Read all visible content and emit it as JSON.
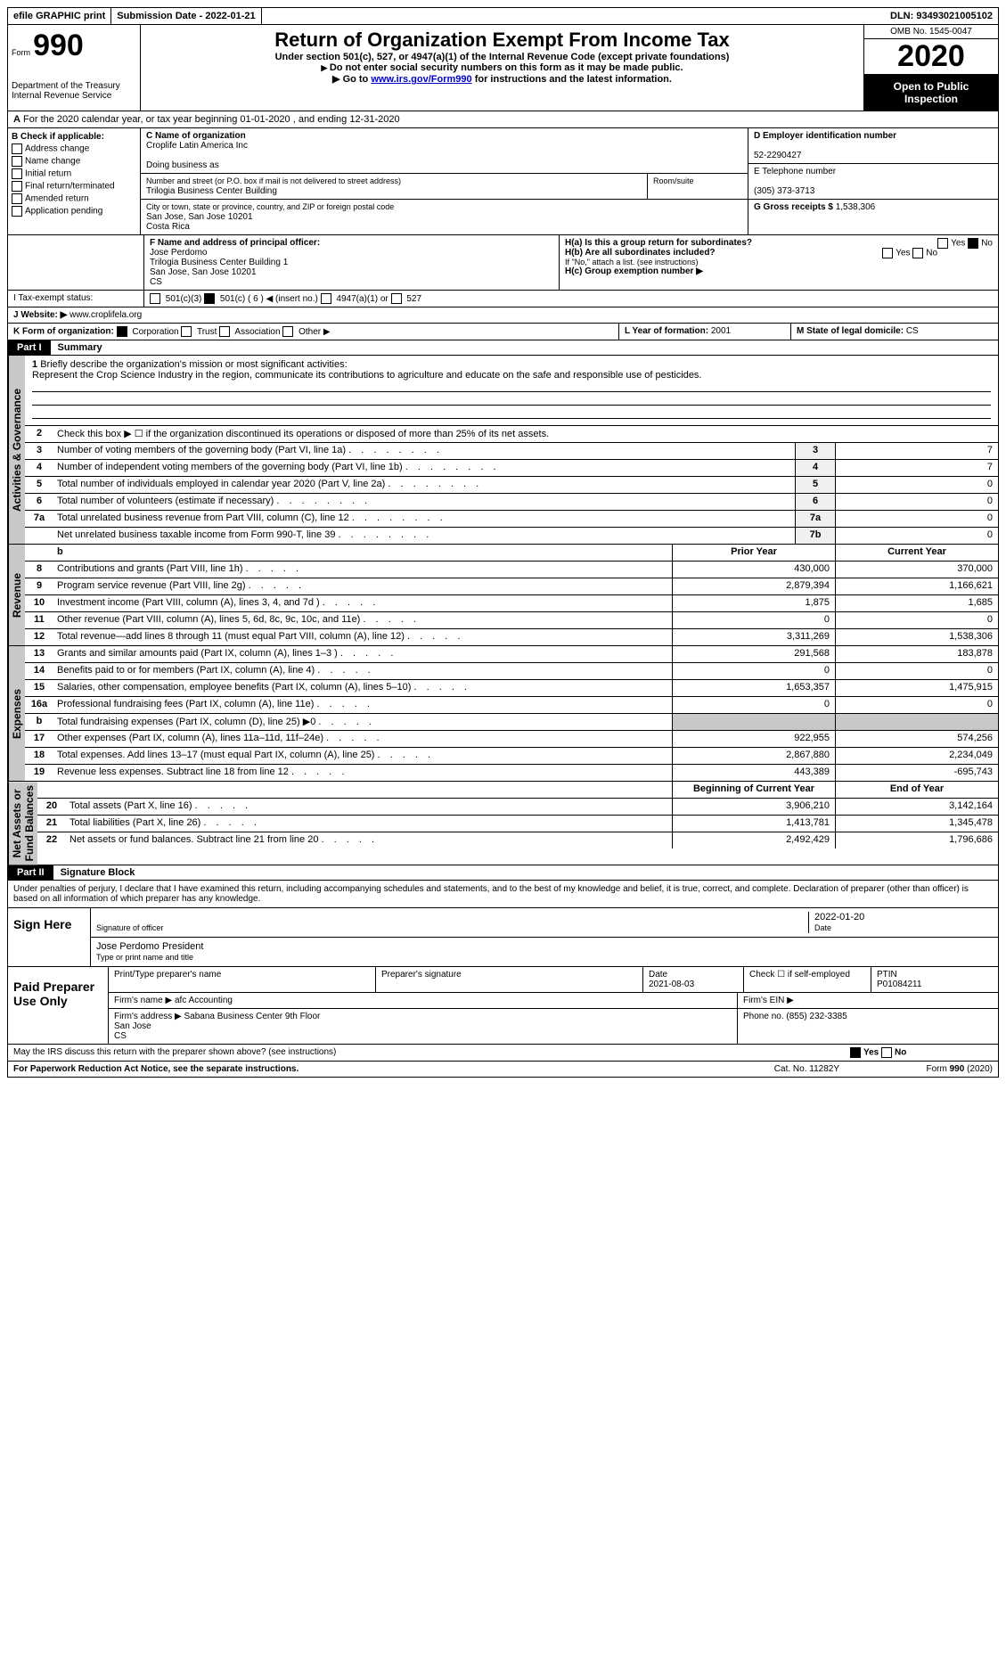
{
  "top": {
    "efile": "efile GRAPHIC print",
    "sub_label": "Submission Date - ",
    "sub_date": "2022-01-21",
    "dln_label": "DLN: ",
    "dln": "93493021005102"
  },
  "header": {
    "form": "Form",
    "form_no": "990",
    "dept": "Department of the Treasury\nInternal Revenue Service",
    "title": "Return of Organization Exempt From Income Tax",
    "sub1": "Under section 501(c), 527, or 4947(a)(1) of the Internal Revenue Code (except private foundations)",
    "sub2": "Do not enter social security numbers on this form as it may be made public.",
    "sub3_a": "Go to ",
    "sub3_link": "www.irs.gov/Form990",
    "sub3_b": " for instructions and the latest information.",
    "omb": "OMB No. 1545-0047",
    "year": "2020",
    "open": "Open to Public Inspection"
  },
  "row_a": "For the 2020 calendar year, or tax year beginning 01-01-2020   , and ending 12-31-2020",
  "b": {
    "hdr": "B Check if applicable:",
    "items": [
      "Address change",
      "Name change",
      "Initial return",
      "Final return/terminated",
      "Amended return",
      "Application pending"
    ]
  },
  "c": {
    "name_lbl": "C Name of organization",
    "name": "Croplife Latin America Inc",
    "dba_lbl": "Doing business as",
    "street_lbl": "Number and street (or P.O. box if mail is not delivered to street address)",
    "street": "Trilogia Business Center Building",
    "room_lbl": "Room/suite",
    "city_lbl": "City or town, state or province, country, and ZIP or foreign postal code",
    "city": "San Jose, San Jose  10201\nCosta Rica"
  },
  "d": {
    "ein_lbl": "D Employer identification number",
    "ein": "52-2290427",
    "tel_lbl": "E Telephone number",
    "tel": "(305) 373-3713",
    "gross_lbl": "G Gross receipts $",
    "gross": "1,538,306"
  },
  "f": {
    "lbl": "F  Name and address of principal officer:",
    "name": "Jose Perdomo",
    "addr1": "Trilogia Business Center Building 1",
    "addr2": "San Jose, San Jose  10201",
    "addr3": "CS"
  },
  "h": {
    "a": "H(a)  Is this a group return for subordinates?",
    "b": "H(b)  Are all subordinates included?",
    "b_note": "If \"No,\" attach a list. (see instructions)",
    "c": "H(c)  Group exemption number ▶",
    "yes": "Yes",
    "no": "No"
  },
  "i": {
    "lbl": "I   Tax-exempt status:",
    "opts": [
      "501(c)(3)",
      "501(c) ( 6 ) ◀ (insert no.)",
      "4947(a)(1) or",
      "527"
    ]
  },
  "j": {
    "lbl": "J   Website: ▶",
    "val": "www.croplifela.org"
  },
  "k": {
    "lbl": "K Form of organization:",
    "opts": [
      "Corporation",
      "Trust",
      "Association",
      "Other ▶"
    ]
  },
  "l": {
    "lbl": "L Year of formation:",
    "val": "2001"
  },
  "m": {
    "lbl": "M State of legal domicile:",
    "val": "CS"
  },
  "part1": {
    "tag": "Part I",
    "title": "Summary"
  },
  "sec_labels": {
    "ag": "Activities & Governance",
    "rev": "Revenue",
    "exp": "Expenses",
    "na": "Net Assets or\nFund Balances"
  },
  "mission": {
    "num": "1",
    "lbl": "Briefly describe the organization's mission or most significant activities:",
    "txt": "Represent the Crop Science Industry in the region, communicate its contributions to agriculture and educate on the safe and responsible use of pesticides."
  },
  "l2": {
    "num": "2",
    "lbl": "Check this box ▶ ☐ if the organization discontinued its operations or disposed of more than 25% of its net assets."
  },
  "gov_rows": [
    {
      "n": "3",
      "lbl": "Number of voting members of the governing body (Part VI, line 1a)",
      "box": "3",
      "v": "7"
    },
    {
      "n": "4",
      "lbl": "Number of independent voting members of the governing body (Part VI, line 1b)",
      "box": "4",
      "v": "7"
    },
    {
      "n": "5",
      "lbl": "Total number of individuals employed in calendar year 2020 (Part V, line 2a)",
      "box": "5",
      "v": "0"
    },
    {
      "n": "6",
      "lbl": "Total number of volunteers (estimate if necessary)",
      "box": "6",
      "v": "0"
    },
    {
      "n": "7a",
      "lbl": "Total unrelated business revenue from Part VIII, column (C), line 12",
      "box": "7a",
      "v": "0"
    },
    {
      "n": "",
      "lbl": "Net unrelated business taxable income from Form 990-T, line 39",
      "box": "7b",
      "v": "0"
    }
  ],
  "cols": {
    "prior": "Prior Year",
    "curr": "Current Year",
    "beg": "Beginning of Current Year",
    "end": "End of Year"
  },
  "rev_rows": [
    {
      "n": "8",
      "lbl": "Contributions and grants (Part VIII, line 1h)",
      "p": "430,000",
      "c": "370,000"
    },
    {
      "n": "9",
      "lbl": "Program service revenue (Part VIII, line 2g)",
      "p": "2,879,394",
      "c": "1,166,621"
    },
    {
      "n": "10",
      "lbl": "Investment income (Part VIII, column (A), lines 3, 4, and 7d )",
      "p": "1,875",
      "c": "1,685"
    },
    {
      "n": "11",
      "lbl": "Other revenue (Part VIII, column (A), lines 5, 6d, 8c, 9c, 10c, and 11e)",
      "p": "0",
      "c": "0"
    },
    {
      "n": "12",
      "lbl": "Total revenue—add lines 8 through 11 (must equal Part VIII, column (A), line 12)",
      "p": "3,311,269",
      "c": "1,538,306"
    }
  ],
  "exp_rows": [
    {
      "n": "13",
      "lbl": "Grants and similar amounts paid (Part IX, column (A), lines 1–3 )",
      "p": "291,568",
      "c": "183,878"
    },
    {
      "n": "14",
      "lbl": "Benefits paid to or for members (Part IX, column (A), line 4)",
      "p": "0",
      "c": "0"
    },
    {
      "n": "15",
      "lbl": "Salaries, other compensation, employee benefits (Part IX, column (A), lines 5–10)",
      "p": "1,653,357",
      "c": "1,475,915"
    },
    {
      "n": "16a",
      "lbl": "Professional fundraising fees (Part IX, column (A), line 11e)",
      "p": "0",
      "c": "0"
    },
    {
      "n": "b",
      "lbl": "Total fundraising expenses (Part IX, column (D), line 25) ▶0",
      "p": "shade",
      "c": "shade"
    },
    {
      "n": "17",
      "lbl": "Other expenses (Part IX, column (A), lines 11a–11d, 11f–24e)",
      "p": "922,955",
      "c": "574,256"
    },
    {
      "n": "18",
      "lbl": "Total expenses. Add lines 13–17 (must equal Part IX, column (A), line 25)",
      "p": "2,867,880",
      "c": "2,234,049"
    },
    {
      "n": "19",
      "lbl": "Revenue less expenses. Subtract line 18 from line 12",
      "p": "443,389",
      "c": "-695,743"
    }
  ],
  "na_rows": [
    {
      "n": "20",
      "lbl": "Total assets (Part X, line 16)",
      "p": "3,906,210",
      "c": "3,142,164"
    },
    {
      "n": "21",
      "lbl": "Total liabilities (Part X, line 26)",
      "p": "1,413,781",
      "c": "1,345,478"
    },
    {
      "n": "22",
      "lbl": "Net assets or fund balances. Subtract line 21 from line 20",
      "p": "2,492,429",
      "c": "1,796,686"
    }
  ],
  "part2": {
    "tag": "Part II",
    "title": "Signature Block"
  },
  "perjury": "Under penalties of perjury, I declare that I have examined this return, including accompanying schedules and statements, and to the best of my knowledge and belief, it is true, correct, and complete. Declaration of preparer (other than officer) is based on all information of which preparer has any knowledge.",
  "sign": {
    "here": "Sign Here",
    "sig_off": "Signature of officer",
    "date": "Date",
    "date_v": "2022-01-20",
    "name": "Jose Perdomo  President",
    "type": "Type or print name and title"
  },
  "prep": {
    "hdr": "Paid Preparer Use Only",
    "r1": [
      "Print/Type preparer's name",
      "Preparer's signature",
      "Date\n2021-08-03",
      "Check ☐ if self-employed",
      "PTIN\nP01084211"
    ],
    "r2": {
      "lbl": "Firm's name   ▶",
      "val": "afc Accounting",
      "ein": "Firm's EIN ▶"
    },
    "r3": {
      "lbl": "Firm's address ▶",
      "val": "Sabana Business Center 9th Floor\nSan Jose\nCS",
      "ph_lbl": "Phone no.",
      "ph": "(855) 232-3385"
    }
  },
  "may": "May the IRS discuss this return with the preparer shown above? (see instructions)",
  "foot": {
    "pra": "For Paperwork Reduction Act Notice, see the separate instructions.",
    "cat": "Cat. No. 11282Y",
    "form": "Form 990 (2020)"
  }
}
